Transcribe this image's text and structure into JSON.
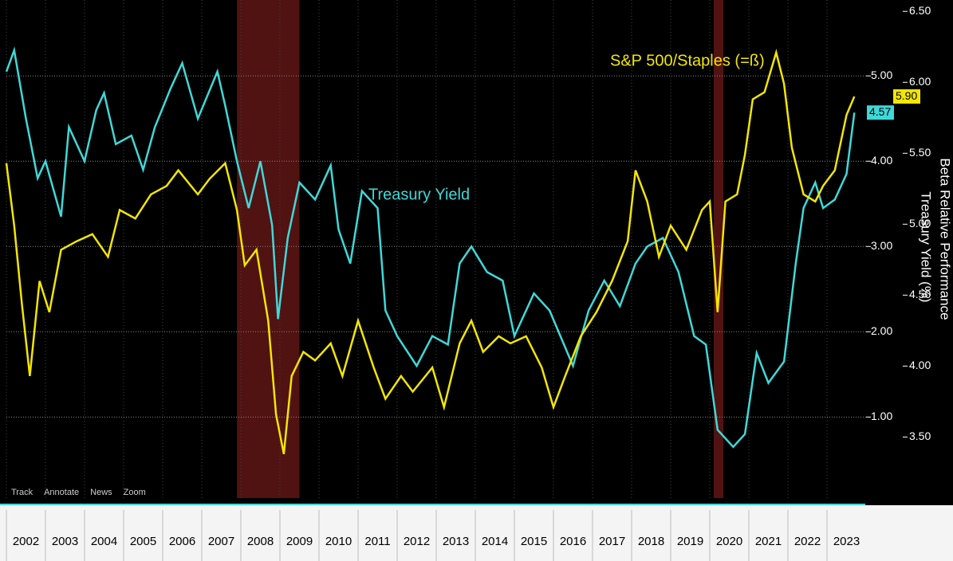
{
  "chart_data": {
    "type": "line",
    "xlim": [
      2002,
      2024
    ],
    "xticks": [
      2002,
      2003,
      2004,
      2005,
      2006,
      2007,
      2008,
      2009,
      2010,
      2011,
      2012,
      2013,
      2014,
      2015,
      2016,
      2017,
      2018,
      2019,
      2020,
      2021,
      2022,
      2023
    ],
    "ylim": [
      0.05,
      5.89
    ],
    "yticks": [
      {
        "value": 1,
        "label": "1.00"
      },
      {
        "value": 2,
        "label": "2.00"
      },
      {
        "value": 3,
        "label": "3.00"
      },
      {
        "value": 4,
        "label": "4.00"
      },
      {
        "value": 5,
        "label": "5.00"
      }
    ],
    "y2lim": [
      3.07,
      6.58
    ],
    "y2ticks": [
      {
        "value": 3.5,
        "label": "3.50"
      },
      {
        "value": 4,
        "label": "4.00"
      },
      {
        "value": 4.5,
        "label": "4.50"
      },
      {
        "value": 5,
        "label": "5.00"
      },
      {
        "value": 5.5,
        "label": "5.50"
      },
      {
        "value": 6,
        "label": "6.00"
      },
      {
        "value": 6.5,
        "label": "6.50"
      }
    ],
    "ylabel": "Treasury Yield (%)",
    "y2label": "Beta Relative Performance",
    "recessions": [
      [
        2007.9,
        2009.5
      ],
      [
        2020.1,
        2020.35
      ]
    ],
    "toolbar": [
      "Track",
      "Annotate",
      "News",
      "Zoom"
    ],
    "series": [
      {
        "name": "Treasury Yield",
        "color": "#3fd8d8",
        "axis": "y",
        "last_value_label": "4.57",
        "x": [
          2002.0,
          2002.2,
          2002.5,
          2002.8,
          2003.0,
          2003.4,
          2003.6,
          2004.0,
          2004.3,
          2004.5,
          2004.8,
          2005.2,
          2005.5,
          2005.8,
          2006.2,
          2006.5,
          2006.9,
          2007.4,
          2007.6,
          2007.9,
          2008.2,
          2008.5,
          2008.8,
          2008.95,
          2009.2,
          2009.5,
          2009.9,
          2010.3,
          2010.5,
          2010.8,
          2011.1,
          2011.5,
          2011.7,
          2012.0,
          2012.5,
          2012.9,
          2013.3,
          2013.6,
          2013.9,
          2014.3,
          2014.7,
          2015.0,
          2015.5,
          2015.9,
          2016.5,
          2016.9,
          2017.3,
          2017.7,
          2018.1,
          2018.4,
          2018.8,
          2019.2,
          2019.6,
          2019.9,
          2020.2,
          2020.6,
          2020.9,
          2021.2,
          2021.5,
          2021.9,
          2022.2,
          2022.4,
          2022.7,
          2022.9,
          2023.2,
          2023.5,
          2023.7
        ],
        "values": [
          5.05,
          5.3,
          4.5,
          3.8,
          4.0,
          3.35,
          4.4,
          4.0,
          4.6,
          4.8,
          4.2,
          4.3,
          3.9,
          4.4,
          4.85,
          5.15,
          4.5,
          5.05,
          4.65,
          4.0,
          3.45,
          4.0,
          3.25,
          2.15,
          3.1,
          3.75,
          3.55,
          3.95,
          3.2,
          2.8,
          3.65,
          3.45,
          2.25,
          1.95,
          1.6,
          1.95,
          1.85,
          2.8,
          3.0,
          2.7,
          2.6,
          1.95,
          2.45,
          2.25,
          1.6,
          2.25,
          2.6,
          2.3,
          2.8,
          3.0,
          3.1,
          2.7,
          1.95,
          1.85,
          0.85,
          0.65,
          0.8,
          1.75,
          1.4,
          1.65,
          2.8,
          3.45,
          3.75,
          3.45,
          3.55,
          3.85,
          4.57
        ]
      },
      {
        "name": "S&P 500/Staples (=ß)",
        "color": "#f2e600",
        "axis": "y2",
        "last_value_label": "5.90",
        "x": [
          2002.0,
          2002.2,
          2002.4,
          2002.6,
          2002.85,
          2003.1,
          2003.4,
          2003.8,
          2004.2,
          2004.6,
          2004.9,
          2005.3,
          2005.7,
          2006.1,
          2006.4,
          2006.9,
          2007.2,
          2007.6,
          2007.9,
          2008.1,
          2008.4,
          2008.7,
          2008.9,
          2009.1,
          2009.3,
          2009.6,
          2009.9,
          2010.3,
          2010.6,
          2011.0,
          2011.4,
          2011.7,
          2012.1,
          2012.4,
          2012.9,
          2013.2,
          2013.6,
          2013.9,
          2014.2,
          2014.6,
          2014.9,
          2015.3,
          2015.7,
          2016.0,
          2016.3,
          2016.7,
          2017.1,
          2017.5,
          2017.9,
          2018.1,
          2018.4,
          2018.7,
          2019.0,
          2019.4,
          2019.8,
          2020.0,
          2020.2,
          2020.4,
          2020.7,
          2020.9,
          2021.1,
          2021.4,
          2021.7,
          2021.9,
          2022.1,
          2022.4,
          2022.7,
          2022.9,
          2023.2,
          2023.5,
          2023.7
        ],
        "values": [
          5.43,
          4.99,
          4.43,
          3.93,
          4.6,
          4.38,
          4.82,
          4.88,
          4.93,
          4.77,
          5.1,
          5.04,
          5.21,
          5.27,
          5.38,
          5.21,
          5.32,
          5.43,
          5.1,
          4.71,
          4.82,
          4.32,
          3.66,
          3.38,
          3.93,
          4.1,
          4.04,
          4.16,
          3.93,
          4.32,
          3.99,
          3.77,
          3.93,
          3.82,
          3.99,
          3.71,
          4.16,
          4.32,
          4.1,
          4.21,
          4.16,
          4.21,
          3.99,
          3.71,
          3.93,
          4.21,
          4.38,
          4.6,
          4.88,
          5.38,
          5.16,
          4.77,
          4.99,
          4.82,
          5.1,
          5.16,
          4.38,
          5.16,
          5.21,
          5.49,
          5.88,
          5.93,
          6.21,
          5.99,
          5.54,
          5.21,
          5.16,
          5.27,
          5.38,
          5.77,
          5.9
        ]
      }
    ]
  }
}
